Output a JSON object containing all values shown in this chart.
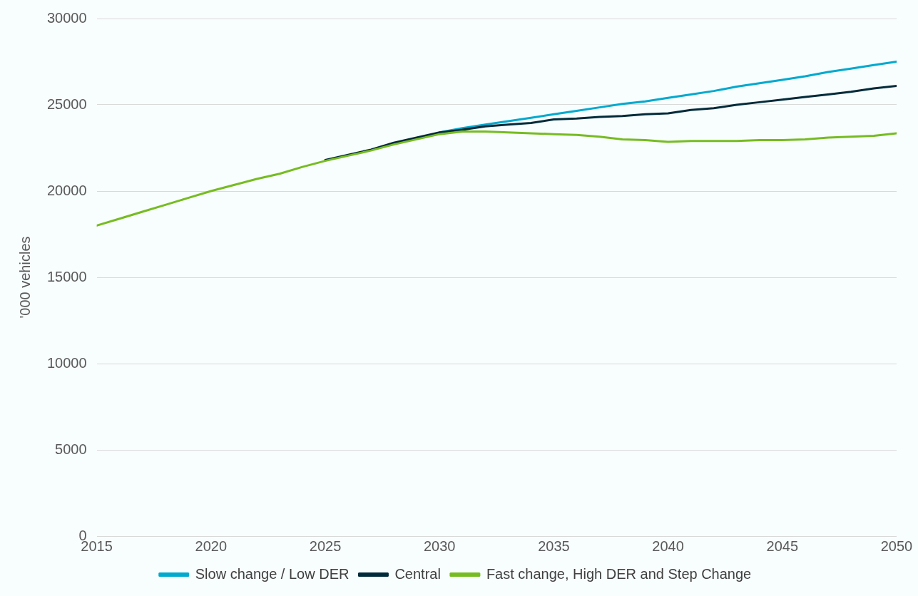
{
  "chart_data": {
    "type": "line",
    "ylabel": "'000 vehicles",
    "x": [
      2015,
      2016,
      2017,
      2018,
      2019,
      2020,
      2021,
      2022,
      2023,
      2024,
      2025,
      2026,
      2027,
      2028,
      2029,
      2030,
      2031,
      2032,
      2033,
      2034,
      2035,
      2036,
      2037,
      2038,
      2039,
      2040,
      2041,
      2042,
      2043,
      2044,
      2045,
      2046,
      2047,
      2048,
      2049,
      2050
    ],
    "series": [
      {
        "name": "Slow change / Low DER",
        "color": "#00a9ce",
        "values": [
          null,
          null,
          null,
          null,
          null,
          null,
          null,
          null,
          null,
          null,
          null,
          null,
          null,
          null,
          null,
          23400,
          23650,
          23850,
          24050,
          24250,
          24450,
          24650,
          24850,
          25050,
          25200,
          25400,
          25600,
          25800,
          26050,
          26250,
          26450,
          26650,
          26900,
          27100,
          27300,
          27500
        ]
      },
      {
        "name": "Central",
        "color": "#002b3a",
        "values": [
          null,
          null,
          null,
          null,
          null,
          null,
          null,
          null,
          null,
          null,
          21800,
          22100,
          22400,
          22800,
          23100,
          23400,
          23550,
          23750,
          23850,
          23950,
          24150,
          24200,
          24300,
          24350,
          24450,
          24500,
          24700,
          24800,
          25000,
          25150,
          25300,
          25450,
          25600,
          25750,
          25950,
          26100
        ]
      },
      {
        "name": "Fast change, High DER and Step Change",
        "color": "#76bc21",
        "values": [
          18000,
          18400,
          18800,
          19200,
          19600,
          20000,
          20350,
          20700,
          21000,
          21400,
          21750,
          22050,
          22350,
          22700,
          23000,
          23300,
          23450,
          23450,
          23400,
          23350,
          23300,
          23250,
          23150,
          23000,
          22950,
          22850,
          22900,
          22900,
          22900,
          22950,
          22950,
          23000,
          23100,
          23150,
          23200,
          23350
        ]
      }
    ],
    "xlim": [
      2015,
      2050
    ],
    "xticks": [
      2015,
      2020,
      2025,
      2030,
      2035,
      2040,
      2045,
      2050
    ],
    "ylim": [
      0,
      30000
    ],
    "yticks": [
      0,
      5000,
      10000,
      15000,
      20000,
      25000,
      30000
    ],
    "grid": "y",
    "legend": "bottom",
    "marker": "none",
    "line_style": "solid"
  }
}
